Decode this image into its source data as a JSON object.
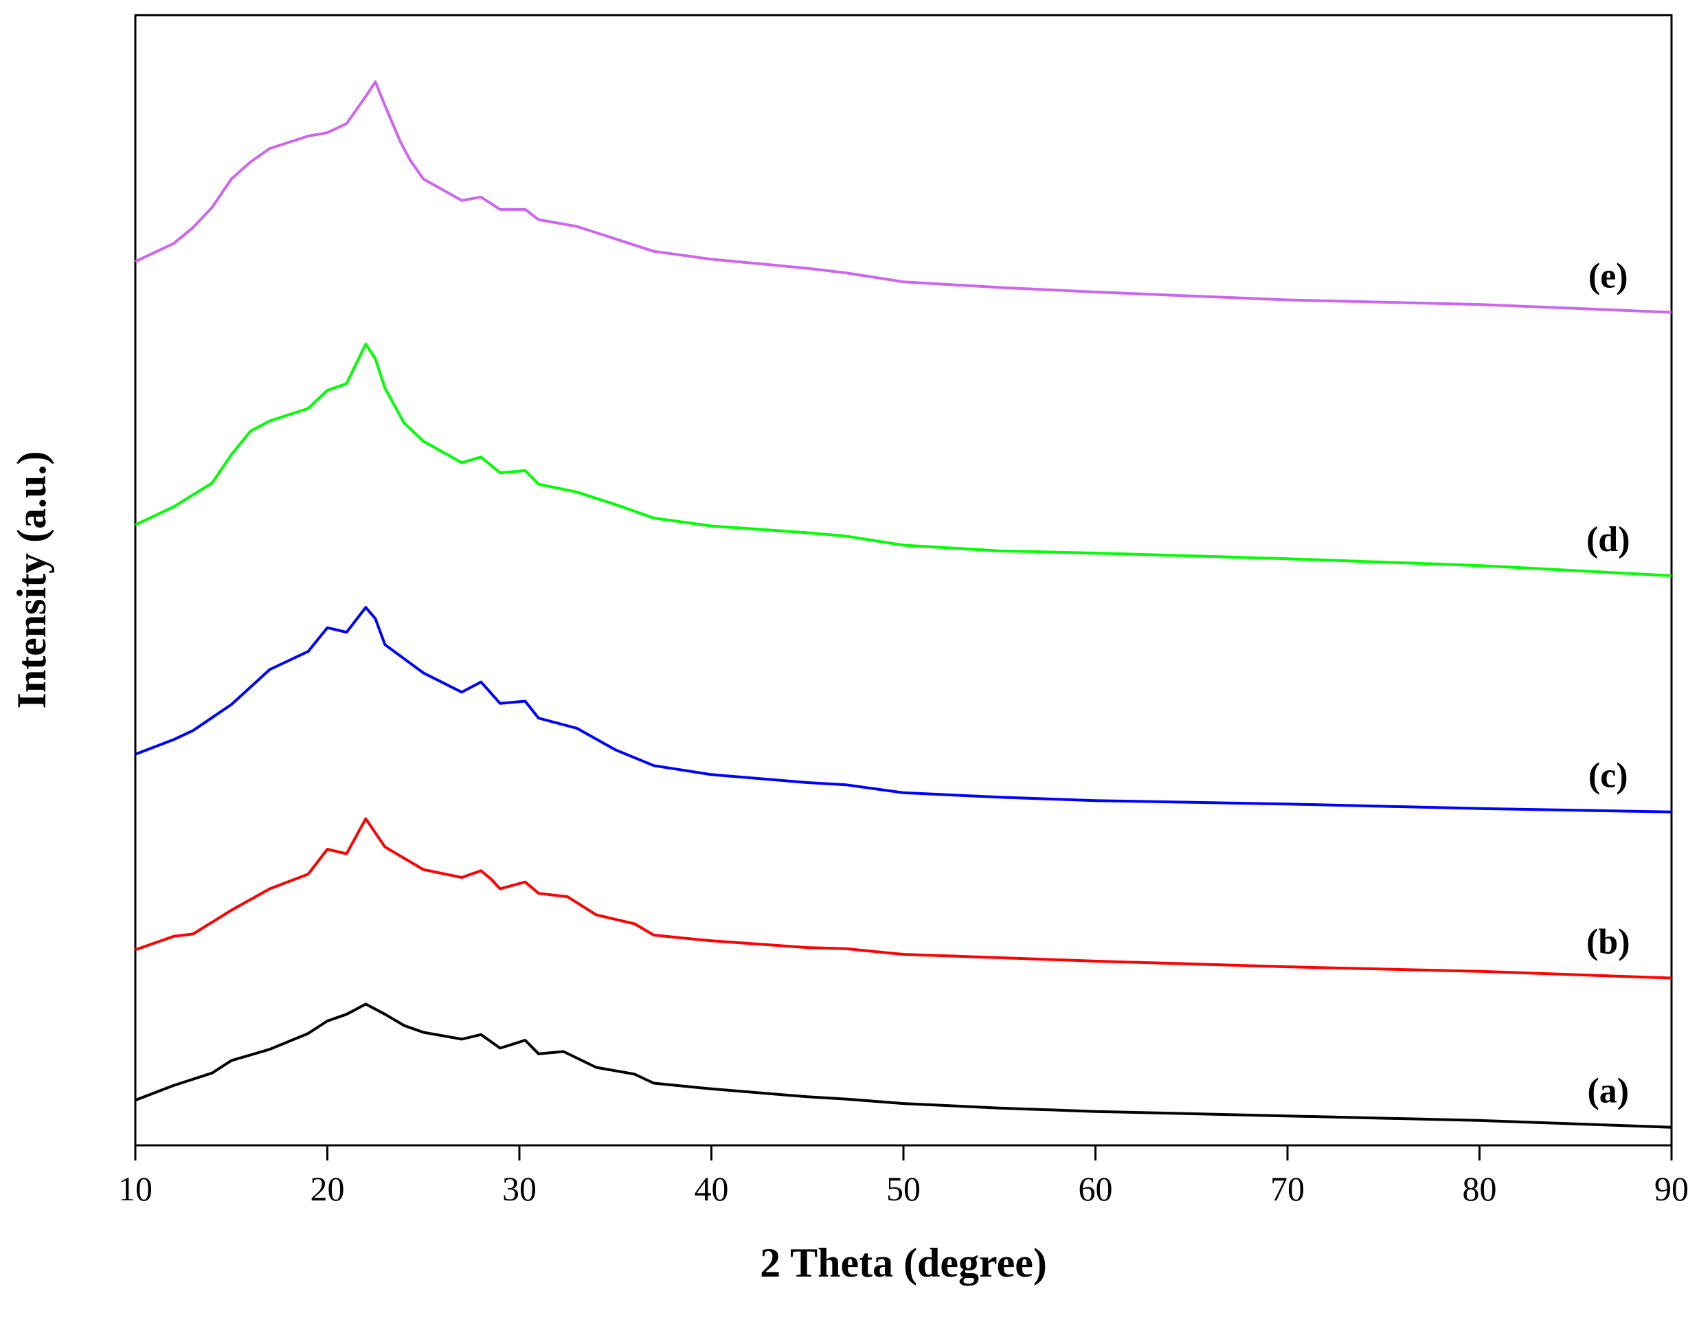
{
  "chart_data": {
    "type": "line",
    "title": "",
    "xlabel": "2 Theta (degree)",
    "ylabel": "Intensity (a.u.)",
    "xlim": [
      10,
      90
    ],
    "ylim": [
      0,
      100
    ],
    "x_ticks": [
      10,
      20,
      30,
      40,
      50,
      60,
      70,
      80,
      90
    ],
    "x_tick_labels": [
      "10",
      "20",
      "30",
      "40",
      "50",
      "60",
      "70",
      "80",
      "90"
    ],
    "y_ticks_shown": false,
    "grid": false,
    "legend": "inline-right",
    "series": [
      {
        "name": "(a)",
        "color": "#000000",
        "x": [
          10,
          12,
          14,
          15,
          17,
          19,
          20,
          21,
          22,
          23,
          24,
          25,
          27,
          28,
          29,
          30.3,
          31,
          32.3,
          34,
          36,
          37,
          40,
          45,
          47,
          50,
          55,
          60,
          70,
          80,
          90
        ],
        "y": [
          4.0,
          5.3,
          6.4,
          7.5,
          8.5,
          9.9,
          11.0,
          11.6,
          12.5,
          11.6,
          10.6,
          10.0,
          9.4,
          9.8,
          8.6,
          9.3,
          8.1,
          8.3,
          6.9,
          6.3,
          5.5,
          5.0,
          4.3,
          4.1,
          3.7,
          3.3,
          3.0,
          2.6,
          2.2,
          1.6
        ]
      },
      {
        "name": "(b)",
        "color": "#ff0000",
        "x": [
          10,
          12,
          13,
          15,
          17,
          19,
          20,
          21,
          22,
          23,
          25,
          27,
          28,
          28.5,
          29,
          30.3,
          31,
          32.5,
          34,
          36,
          37,
          40,
          45,
          47,
          50,
          55,
          60,
          70,
          80,
          90
        ],
        "y": [
          17.3,
          18.5,
          18.7,
          20.8,
          22.7,
          24.0,
          26.2,
          25.8,
          28.9,
          26.4,
          24.4,
          23.7,
          24.3,
          23.6,
          22.7,
          23.3,
          22.3,
          22.0,
          20.4,
          19.6,
          18.6,
          18.1,
          17.5,
          17.4,
          16.9,
          16.6,
          16.3,
          15.8,
          15.4,
          14.8
        ]
      },
      {
        "name": "(c)",
        "color": "#0000ff",
        "x": [
          10,
          12,
          13,
          15,
          17,
          19,
          20,
          21,
          22,
          22.5,
          23,
          25,
          27,
          28,
          29,
          30.3,
          31,
          33,
          35,
          37,
          40,
          45,
          47,
          50,
          55,
          60,
          70,
          80,
          90
        ],
        "y": [
          34.6,
          35.9,
          36.7,
          39.0,
          42.1,
          43.7,
          45.8,
          45.4,
          47.6,
          46.6,
          44.3,
          41.8,
          40.1,
          41.0,
          39.1,
          39.3,
          37.8,
          36.9,
          35.0,
          33.6,
          32.8,
          32.1,
          31.9,
          31.2,
          30.8,
          30.5,
          30.2,
          29.8,
          29.5
        ]
      },
      {
        "name": "(d)",
        "color": "#00ff00",
        "x": [
          10,
          12,
          14,
          15,
          16,
          17,
          19,
          20,
          21,
          22,
          22.5,
          23,
          24,
          25,
          27,
          28,
          29,
          30.3,
          31,
          33,
          35,
          37,
          40,
          45,
          47,
          50,
          55,
          60,
          70,
          80,
          90
        ],
        "y": [
          54.9,
          56.5,
          58.6,
          61.1,
          63.2,
          64.1,
          65.2,
          66.8,
          67.4,
          70.9,
          69.6,
          67.0,
          63.9,
          62.3,
          60.4,
          60.9,
          59.5,
          59.7,
          58.5,
          57.8,
          56.7,
          55.5,
          54.8,
          54.2,
          53.9,
          53.1,
          52.6,
          52.4,
          51.9,
          51.3,
          50.4
        ]
      },
      {
        "name": "(e)",
        "color": "#cc66ee",
        "x": [
          10,
          12,
          13,
          14,
          15,
          16,
          17,
          19,
          20,
          21,
          22,
          22.5,
          23,
          23.8,
          24.3,
          25,
          27,
          28,
          29,
          30.3,
          31,
          33,
          35,
          37,
          40,
          45,
          47,
          50,
          55,
          60,
          70,
          80,
          90
        ],
        "y": [
          78.2,
          79.8,
          81.2,
          83.0,
          85.5,
          87.0,
          88.2,
          89.3,
          89.6,
          90.4,
          92.8,
          94.1,
          92.0,
          88.8,
          87.2,
          85.5,
          83.6,
          83.9,
          82.8,
          82.8,
          81.9,
          81.3,
          80.2,
          79.1,
          78.4,
          77.6,
          77.2,
          76.4,
          75.9,
          75.5,
          74.8,
          74.4,
          73.7
        ]
      }
    ]
  }
}
